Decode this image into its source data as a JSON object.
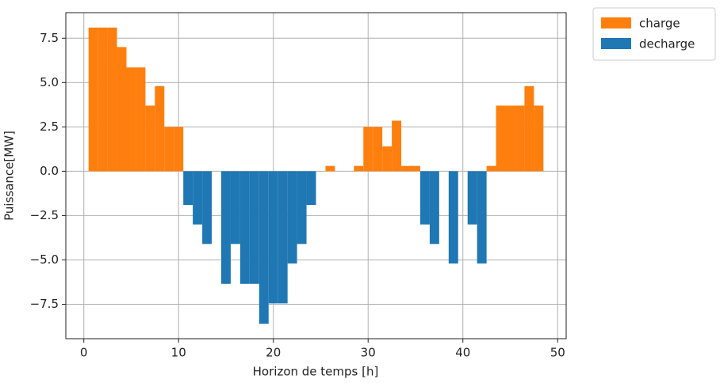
{
  "chart_data": {
    "type": "bar",
    "xlabel": "Horizon de temps [h]",
    "ylabel": "Puissance[MW]",
    "x": [
      1,
      2,
      3,
      4,
      5,
      6,
      7,
      8,
      9,
      10,
      11,
      12,
      13,
      14,
      15,
      16,
      17,
      18,
      19,
      20,
      21,
      22,
      23,
      24,
      25,
      26,
      27,
      28,
      29,
      30,
      31,
      32,
      33,
      34,
      35,
      36,
      37,
      38,
      39,
      40,
      41,
      42,
      43,
      44,
      45,
      46,
      47,
      48
    ],
    "series": [
      {
        "name": "charge",
        "color": "#ff7f0e",
        "values": [
          8.1,
          8.1,
          8.1,
          7.0,
          5.85,
          5.85,
          3.7,
          4.8,
          2.5,
          2.5,
          null,
          null,
          null,
          null,
          null,
          null,
          null,
          null,
          null,
          null,
          null,
          null,
          null,
          null,
          null,
          0.3,
          null,
          null,
          0.3,
          2.5,
          2.5,
          1.4,
          2.85,
          0.3,
          0.3,
          null,
          null,
          null,
          null,
          null,
          null,
          null,
          0.3,
          3.7,
          3.7,
          3.7,
          4.8,
          3.7
        ]
      },
      {
        "name": "decharge",
        "color": "#1f77b4",
        "values": [
          null,
          null,
          null,
          null,
          null,
          null,
          null,
          null,
          null,
          null,
          -1.9,
          -3.0,
          -4.1,
          null,
          -6.35,
          -4.1,
          -6.35,
          -6.35,
          -8.6,
          -7.45,
          -7.45,
          -5.2,
          -4.1,
          -1.9,
          null,
          null,
          null,
          null,
          null,
          null,
          null,
          null,
          null,
          null,
          null,
          -3.0,
          -4.1,
          null,
          -5.2,
          null,
          -3.0,
          -5.2,
          null,
          null,
          null,
          null,
          null,
          null
        ]
      }
    ],
    "xlim": [
      -1.9,
      50.9
    ],
    "xticks": [
      0,
      10,
      20,
      30,
      40,
      50
    ],
    "ylim": [
      -9.44,
      8.94
    ],
    "yticks": [
      {
        "value": -7.5,
        "label": "−7.5"
      },
      {
        "value": -5.0,
        "label": "−5.0"
      },
      {
        "value": -2.5,
        "label": "−2.5"
      },
      {
        "value": 0.0,
        "label": "0.0"
      },
      {
        "value": 2.5,
        "label": "2.5"
      },
      {
        "value": 5.0,
        "label": "5.0"
      },
      {
        "value": 7.5,
        "label": "7.5"
      }
    ],
    "grid": true,
    "legend": "outside-upper-right"
  }
}
